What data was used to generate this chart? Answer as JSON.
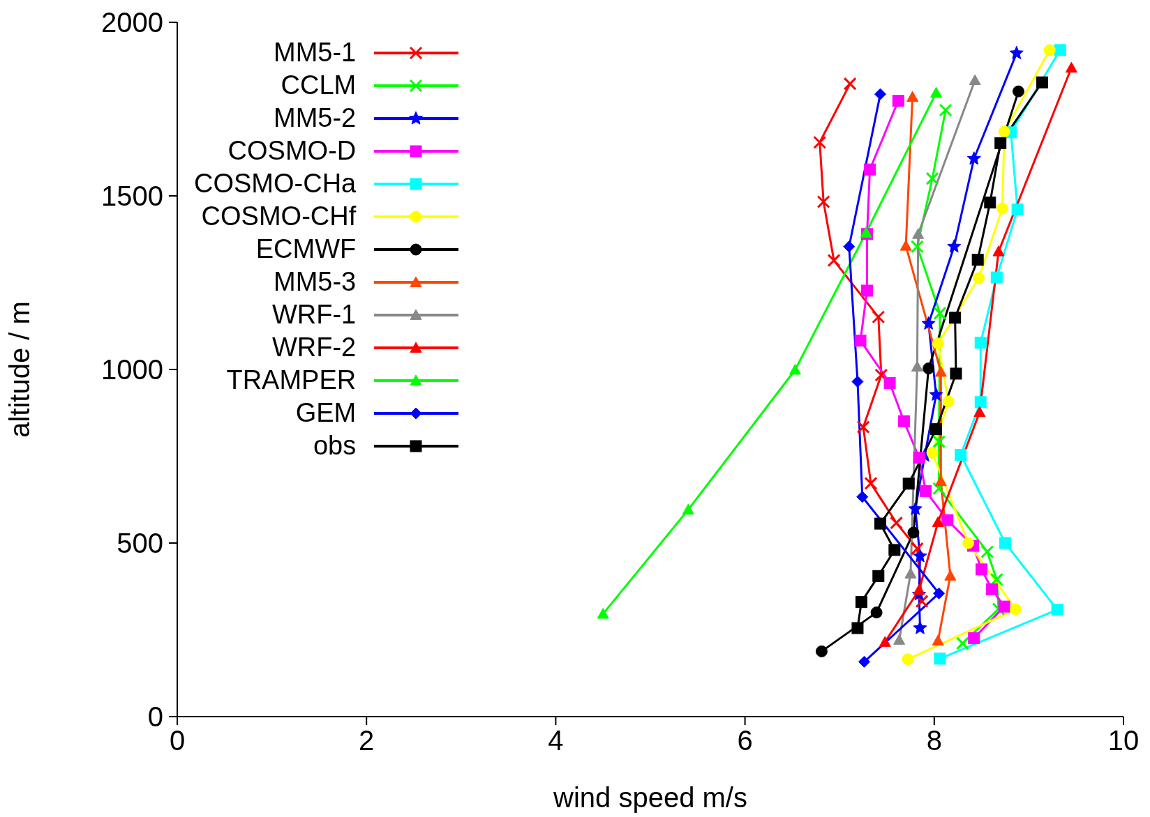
{
  "chart_data": {
    "type": "line",
    "xlabel": "wind speed m/s",
    "ylabel": "altitude / m",
    "xlim": [
      0,
      10
    ],
    "xticks": [
      0,
      2,
      4,
      6,
      8,
      10
    ],
    "ylim": [
      0,
      2000
    ],
    "yticks": [
      0,
      500,
      1000,
      1500,
      2000
    ],
    "grid": false,
    "legend": "top left",
    "line_style": "solid",
    "series": [
      {
        "name": "MM5-1",
        "color": "#ff0000",
        "marker": "cross",
        "x": [
          7.11,
          6.79,
          6.83,
          6.94,
          7.41,
          7.44,
          7.25,
          7.33,
          7.6,
          7.82,
          7.87
        ],
        "values": [
          1823,
          1654,
          1483,
          1314,
          1151,
          984,
          834,
          672,
          558,
          484,
          332
        ]
      },
      {
        "name": "CCLM",
        "color": "#00ff00",
        "marker": "cross",
        "x": [
          8.12,
          7.98,
          7.82,
          8.06,
          8.05,
          8.05,
          8.56,
          8.66,
          8.68,
          8.3
        ],
        "values": [
          1747,
          1550,
          1354,
          1162,
          792,
          657,
          475,
          395,
          310,
          211
        ]
      },
      {
        "name": "MM5-2",
        "color": "#0000ff",
        "marker": "star",
        "x": [
          8.87,
          8.42,
          8.21,
          7.94,
          8.02,
          7.9,
          7.8,
          7.85,
          7.84,
          7.85
        ],
        "values": [
          1911,
          1607,
          1354,
          1132,
          927,
          752,
          598,
          462,
          352,
          255
        ]
      },
      {
        "name": "COSMO-D",
        "color": "#ff00ff",
        "marker": "square",
        "x": [
          7.62,
          7.32,
          7.29,
          7.29,
          7.22,
          7.53,
          7.68,
          7.84,
          7.91,
          8.14,
          8.41,
          8.5,
          8.61,
          8.74,
          8.42
        ],
        "values": [
          1774,
          1576,
          1390,
          1227,
          1083,
          961,
          851,
          746,
          650,
          566,
          492,
          424,
          367,
          317,
          226
        ]
      },
      {
        "name": "COSMO-CHa",
        "color": "#00ffff",
        "marker": "square",
        "x": [
          9.33,
          8.81,
          8.88,
          8.66,
          8.49,
          8.49,
          8.28,
          8.75,
          9.3,
          8.06
        ],
        "values": [
          1920,
          1683,
          1461,
          1265,
          1077,
          906,
          754,
          500,
          308,
          167
        ]
      },
      {
        "name": "COSMO-CHf",
        "color": "#ffff00",
        "marker": "circle",
        "x": [
          9.22,
          8.74,
          8.72,
          8.47,
          8.04,
          8.15,
          7.98,
          8.36,
          8.86,
          7.72
        ],
        "values": [
          1920,
          1685,
          1464,
          1263,
          1075,
          908,
          760,
          500,
          309,
          165
        ]
      },
      {
        "name": "ECMWF",
        "color": "#000000",
        "marker": "circle",
        "x": [
          8.89,
          7.94,
          7.78,
          7.39,
          6.81
        ],
        "values": [
          1801,
          1003,
          530,
          300,
          188
        ]
      },
      {
        "name": "MM5-3",
        "color": "#ff4500",
        "marker": "triangle",
        "x": [
          7.77,
          7.7,
          8.07,
          8.07,
          8.17,
          8.04
        ],
        "values": [
          1785,
          1356,
          993,
          678,
          406,
          219
        ]
      },
      {
        "name": "WRF-1",
        "color": "#888888",
        "marker": "triangle",
        "x": [
          8.43,
          7.83,
          7.82,
          7.75,
          7.63
        ],
        "values": [
          1833,
          1390,
          1008,
          412,
          221
        ]
      },
      {
        "name": "WRF-2",
        "color": "#ff0000",
        "marker": "triangle",
        "x": [
          9.45,
          8.68,
          8.48,
          8.04,
          7.84,
          7.48
        ],
        "values": [
          1869,
          1340,
          877,
          560,
          365,
          215
        ]
      },
      {
        "name": "TRAMPER",
        "color": "#00ff00",
        "marker": "triangle",
        "x": [
          8.02,
          7.28,
          6.53,
          5.4,
          4.5
        ],
        "values": [
          1797,
          1394,
          999,
          596,
          296
        ]
      },
      {
        "name": "GEM",
        "color": "#0000ff",
        "marker": "diamond",
        "x": [
          7.43,
          7.1,
          7.19,
          7.24,
          8.05,
          7.26
        ],
        "values": [
          1793,
          1354,
          965,
          633,
          355,
          158
        ]
      },
      {
        "name": "obs",
        "color": "#000000",
        "marker": "square",
        "x": [
          9.14,
          8.7,
          8.59,
          8.46,
          8.22,
          8.23,
          8.02,
          7.73,
          7.43,
          7.58,
          7.41,
          7.23,
          7.19
        ],
        "values": [
          1827,
          1652,
          1481,
          1316,
          1149,
          988,
          828,
          671,
          556,
          480,
          405,
          330,
          255
        ]
      }
    ]
  }
}
